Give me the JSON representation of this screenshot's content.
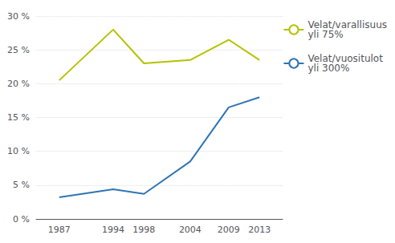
{
  "chart_data": {
    "type": "line",
    "x": [
      1987,
      1994,
      1998,
      2004,
      2009,
      2013
    ],
    "series": [
      {
        "name": "Velat/varallisuus\nyli 75%",
        "color": "#b5c200",
        "values": [
          20.5,
          28.0,
          23.0,
          23.5,
          26.5,
          23.5
        ]
      },
      {
        "name": "Velat/vuositulot\nyli 300%",
        "color": "#2e75b6",
        "values": [
          3.2,
          4.4,
          3.7,
          8.5,
          16.5,
          18.0
        ]
      }
    ],
    "xlim": [
      1984,
      2016
    ],
    "xticks": [
      1987,
      1994,
      1998,
      2004,
      2009,
      2013
    ],
    "ylim": [
      0,
      30
    ],
    "yticks": [
      {
        "value": 0,
        "label": "0 %"
      },
      {
        "value": 5,
        "label": "5 %"
      },
      {
        "value": 10,
        "label": "10 %"
      },
      {
        "value": 15,
        "label": "15 %"
      },
      {
        "value": 20,
        "label": "20 %"
      },
      {
        "value": 25,
        "label": "25 %"
      },
      {
        "value": 30,
        "label": "30 %"
      }
    ],
    "grid": true,
    "legend": "right"
  }
}
